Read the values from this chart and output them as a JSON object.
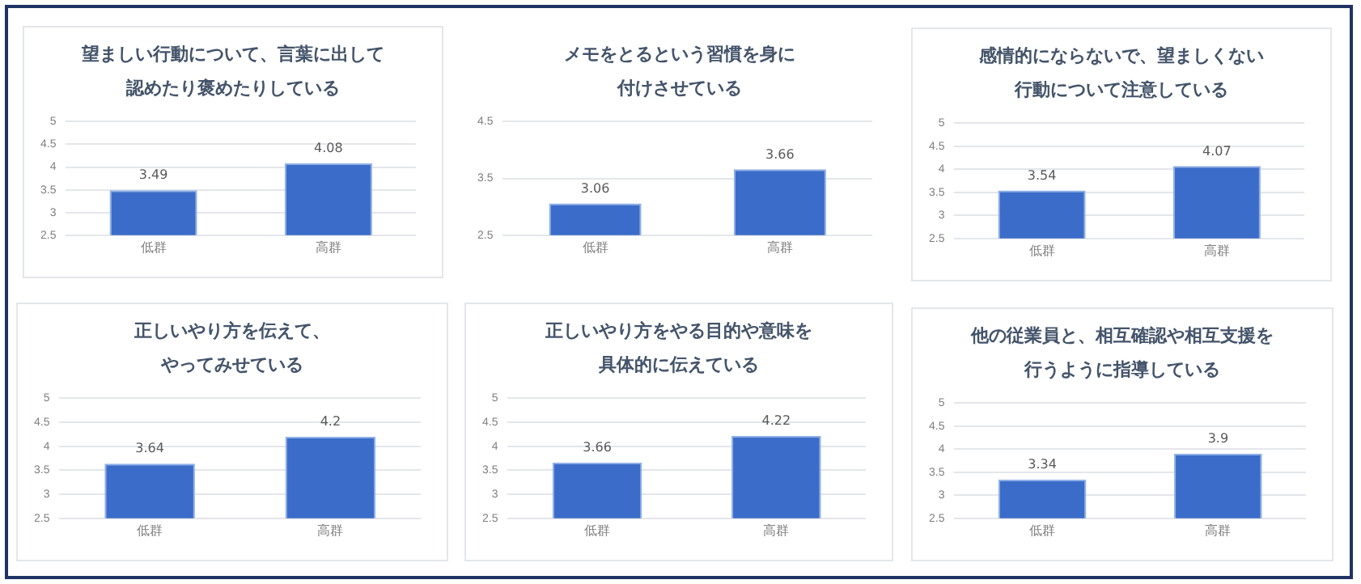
{
  "chart_data": [
    {
      "type": "bar",
      "title": "望ましい行動について、言葉に出して認めたり褒めたりしている",
      "categories": [
        "低群",
        "高群"
      ],
      "values": [
        3.49,
        4.08
      ],
      "color": "#3b6cc9",
      "ylim": [
        2.5,
        5
      ],
      "yticks": [
        2.5,
        3,
        3.5,
        4,
        4.5,
        5
      ],
      "grid": "y",
      "data_labels": true
    },
    {
      "type": "bar",
      "title": "メモをとるという習慣を身に付けさせている",
      "categories": [
        "低群",
        "高群"
      ],
      "values": [
        3.06,
        3.66
      ],
      "color": "#3b6cc9",
      "ylim": [
        2.5,
        4.5
      ],
      "yticks": [
        2.5,
        3.5,
        4.5
      ],
      "grid": "y",
      "data_labels": true
    },
    {
      "type": "bar",
      "title": "感情的にならないで、望ましくない行動について注意している",
      "categories": [
        "低群",
        "高群"
      ],
      "values": [
        3.54,
        4.07
      ],
      "color": "#3b6cc9",
      "ylim": [
        2.5,
        5
      ],
      "yticks": [
        2.5,
        3,
        3.5,
        4,
        4.5,
        5
      ],
      "grid": "y",
      "data_labels": true
    },
    {
      "type": "bar",
      "title": "正しいやり方を伝えて、やってみせている",
      "categories": [
        "低群",
        "高群"
      ],
      "values": [
        3.64,
        4.2
      ],
      "value_labels": [
        "3.64",
        "4.2"
      ],
      "color": "#3b6cc9",
      "ylim": [
        2.5,
        5
      ],
      "yticks": [
        2.5,
        3,
        3.5,
        4,
        4.5,
        5
      ],
      "grid": "y"
    },
    {
      "type": "bar",
      "title": "正しいやり方をやる目的や意味を具体的に伝えている",
      "categories": [
        "低群",
        "高群"
      ],
      "values": [
        3.66,
        4.22
      ],
      "color": "#3b6cc9",
      "ylim": [
        2.5,
        5
      ],
      "yticks": [
        2.5,
        3,
        3.5,
        4,
        4.5,
        5
      ],
      "grid": "y",
      "data_labels": true
    },
    {
      "type": "bar",
      "title": "他の従業員と、相互確認や相互支援を行うように指導している",
      "categories": [
        "低群",
        "高群"
      ],
      "values": [
        3.34,
        3.9
      ],
      "value_labels": [
        "3.34",
        "3.9"
      ],
      "color": "#3b6cc9",
      "ylim": [
        2.5,
        5
      ],
      "yticks": [
        2.5,
        3,
        3.5,
        4,
        4.5,
        5
      ],
      "grid": "y"
    }
  ]
}
